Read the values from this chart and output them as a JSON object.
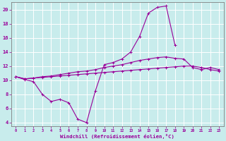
{
  "xlabel": "Windchill (Refroidissement éolien,°C)",
  "background_color": "#c8ecec",
  "grid_color": "#ffffff",
  "line_color": "#990099",
  "x_all": [
    0,
    1,
    2,
    3,
    4,
    5,
    6,
    7,
    8,
    9,
    10,
    11,
    12,
    13,
    14,
    15,
    16,
    17,
    18,
    19,
    20,
    21,
    22,
    23
  ],
  "curve1_x": [
    0,
    1,
    2,
    3,
    4,
    5,
    6,
    7,
    8,
    9,
    10,
    11,
    12,
    13,
    14,
    15,
    16,
    17,
    18
  ],
  "curve1_y": [
    10.5,
    10.1,
    9.8,
    8.0,
    7.0,
    7.3,
    6.8,
    4.5,
    4.0,
    8.5,
    12.2,
    12.5,
    13.0,
    14.0,
    16.2,
    19.5,
    20.3,
    20.5,
    15.0
  ],
  "curve2_y": [
    10.5,
    10.2,
    10.3,
    10.5,
    10.6,
    10.8,
    11.0,
    11.2,
    11.3,
    11.5,
    11.8,
    12.0,
    12.2,
    12.5,
    12.8,
    13.0,
    13.2,
    13.3,
    13.1,
    13.0,
    11.8,
    11.5,
    11.8,
    11.5
  ],
  "curve3_y": [
    10.5,
    10.2,
    10.3,
    10.4,
    10.5,
    10.6,
    10.7,
    10.8,
    10.9,
    11.0,
    11.1,
    11.2,
    11.3,
    11.4,
    11.5,
    11.6,
    11.7,
    11.8,
    11.9,
    12.0,
    12.0,
    11.8,
    11.5,
    11.3
  ],
  "ylim": [
    3.5,
    21.0
  ],
  "xlim": [
    -0.5,
    23.5
  ],
  "yticks": [
    4,
    6,
    8,
    10,
    12,
    14,
    16,
    18,
    20
  ],
  "xticks": [
    0,
    1,
    2,
    3,
    4,
    5,
    6,
    7,
    8,
    9,
    10,
    11,
    12,
    13,
    14,
    15,
    16,
    17,
    18,
    19,
    20,
    21,
    22,
    23
  ]
}
